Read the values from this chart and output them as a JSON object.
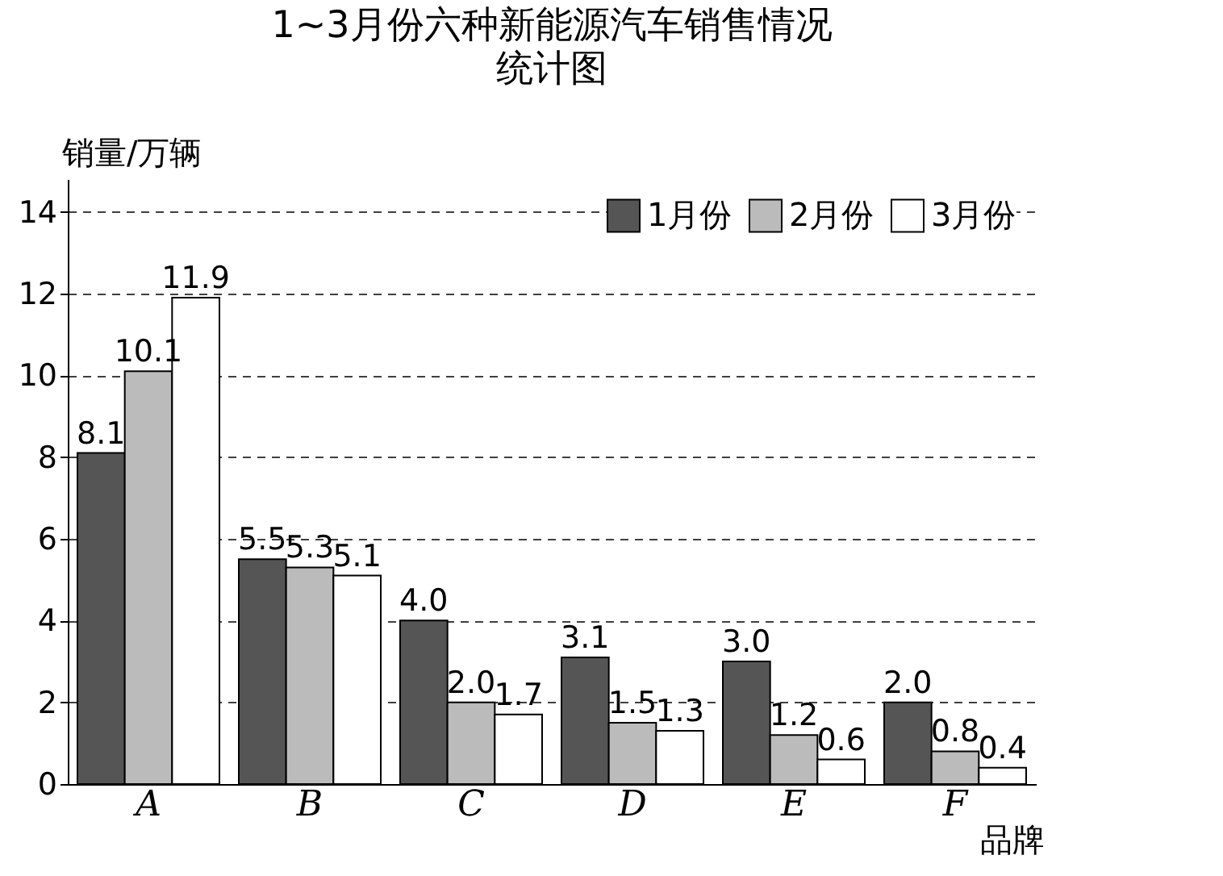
{
  "chart_data": {
    "type": "bar",
    "title": "1~3月份六种新能源汽车销售情况",
    "subtitle": "统计图",
    "xlabel": "品牌",
    "ylabel": "销量/万辆",
    "categories": [
      "A",
      "B",
      "C",
      "D",
      "E",
      "F"
    ],
    "series": [
      {
        "name": "1月份",
        "color": "#555555",
        "values": [
          8.1,
          5.5,
          4.0,
          3.1,
          3.0,
          2.0
        ],
        "value_labels": [
          "8.1",
          "5.5",
          "4.0",
          "3.1",
          "3.0",
          "2.0"
        ]
      },
      {
        "name": "2月份",
        "color": "#bbbbbb",
        "values": [
          10.1,
          5.3,
          2.0,
          1.5,
          1.2,
          0.8
        ],
        "value_labels": [
          "10.1",
          "5.3",
          "2.0",
          "1.5",
          "1.2",
          "0.8"
        ]
      },
      {
        "name": "3月份",
        "color": "#ffffff",
        "values": [
          11.9,
          5.1,
          1.7,
          1.3,
          0.6,
          0.4
        ],
        "value_labels": [
          "11.9",
          "5.1",
          "1.7",
          "1.3",
          "0.6",
          "0.4"
        ]
      }
    ],
    "ylim": [
      0,
      14.8
    ],
    "yticks": [
      0,
      2,
      4,
      6,
      8,
      10,
      12,
      14
    ],
    "grid": "y",
    "legend": "top right"
  }
}
